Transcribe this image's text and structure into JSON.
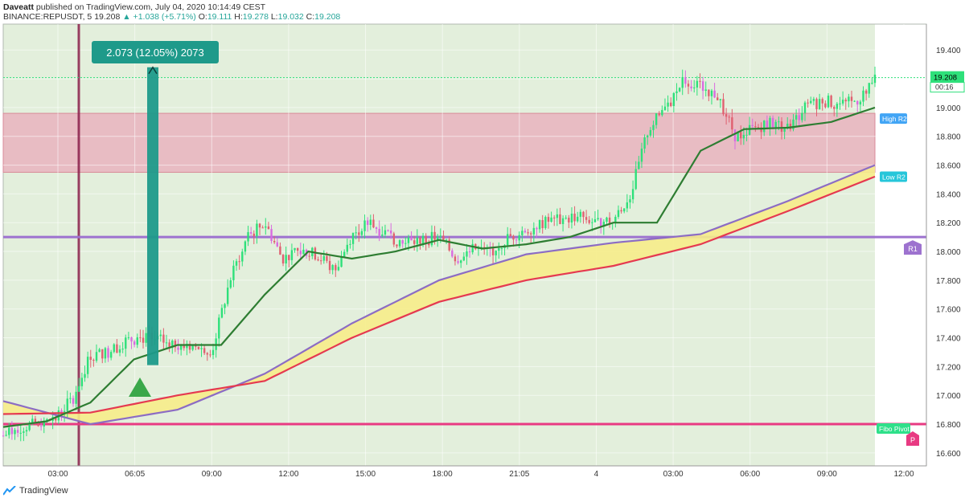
{
  "header": {
    "author": "Daveatt",
    "published": "published on TradingView.com, July 04, 2020 10:14:49 CEST",
    "symbol": "BINANCE:REPUSDT, 5",
    "last": "19.208",
    "change": "▲ +1.038 (+5.71%)",
    "ohlc": {
      "o_label": "O:",
      "o": "19.111",
      "h_label": "H:",
      "h": "19.278",
      "l_label": "L:",
      "l": "19.032",
      "c_label": "C:",
      "c": "19.208"
    }
  },
  "brand": {
    "name": "TradingView",
    "icon": "tradingview-logo-icon"
  },
  "colors": {
    "background_green": "#e3efdc",
    "zone_pink": "#e8bcc3",
    "candle_up": "#2ee07a",
    "candle_down": "#e06070",
    "candle_magenta": "#d96be0",
    "ema_green": "#2e7d32",
    "ma_red": "#e53950",
    "ma_purple": "#8c6cc4",
    "fill_yellow": "#f6ec8a",
    "pivot_pink": "#e83a82",
    "r1_purple": "#9d72cf",
    "measure_teal": "#1e9a8a",
    "price_label_green": "#2ee07a",
    "high_r2_blue": "#42a5f5",
    "low_r2_cyan": "#26c6da",
    "fibo_green": "#2ee08a"
  },
  "chart_data": {
    "type": "line",
    "title": "",
    "y_axis": {
      "ticks": [
        "19.400",
        "19.200",
        "19.000",
        "18.800",
        "18.600",
        "18.400",
        "18.200",
        "18.000",
        "17.800",
        "17.600",
        "17.400",
        "17.200",
        "17.000",
        "16.800",
        "16.600"
      ],
      "ylim": [
        16.51,
        19.58
      ]
    },
    "x_axis": {
      "ticks": [
        "03:00",
        "06:05",
        "09:00",
        "12:00",
        "15:00",
        "18:00",
        "21:05",
        "4",
        "03:00",
        "06:00",
        "09:00",
        "12:00"
      ]
    },
    "price_label": {
      "value": "19.208",
      "countdown": "00:16"
    },
    "measure": {
      "text": "2.073 (12.05%) 2073",
      "from": 17.21,
      "to": 19.28
    },
    "zone": {
      "top": 18.96,
      "bottom": 18.55
    },
    "levels": [
      {
        "name": "High R2",
        "value": 18.96
      },
      {
        "name": "Low R2",
        "value": 18.55
      },
      {
        "name": "R1",
        "value": 18.1
      },
      {
        "name": "Fibo Pivot",
        "value": 16.8
      },
      {
        "name": "P",
        "value": 16.8
      }
    ],
    "series": [
      {
        "key": "price",
        "x": [
          0,
          2,
          4,
          6,
          8,
          10,
          12,
          14,
          16,
          18,
          20,
          22,
          24,
          26,
          28,
          30,
          32,
          34,
          36,
          38,
          40,
          42,
          44,
          46,
          48,
          50,
          52,
          54,
          56,
          58,
          60,
          62,
          64,
          66,
          68,
          70,
          72,
          74,
          76,
          78,
          80,
          82,
          84,
          86,
          88,
          90,
          92,
          94,
          96,
          98,
          100
        ],
        "values": [
          16.72,
          16.78,
          16.8,
          16.84,
          16.98,
          17.28,
          17.3,
          17.38,
          17.4,
          17.38,
          17.36,
          17.34,
          17.32,
          17.8,
          18.1,
          18.2,
          17.95,
          18.0,
          17.98,
          17.86,
          18.12,
          18.2,
          18.12,
          18.05,
          18.08,
          18.1,
          17.95,
          18.02,
          18.0,
          18.1,
          18.15,
          18.2,
          18.22,
          18.25,
          18.2,
          18.22,
          18.4,
          18.85,
          19.0,
          19.18,
          19.15,
          19.08,
          18.8,
          18.85,
          18.9,
          18.85,
          19.0,
          19.05,
          19.02,
          19.05,
          19.21
        ]
      },
      {
        "key": "ema_fast",
        "x": [
          0,
          5,
          10,
          15,
          20,
          25,
          30,
          35,
          40,
          45,
          50,
          55,
          60,
          65,
          70,
          75,
          80,
          85,
          90,
          95,
          100
        ],
        "values": [
          16.78,
          16.82,
          16.95,
          17.25,
          17.35,
          17.35,
          17.7,
          18.0,
          17.95,
          18.0,
          18.08,
          18.02,
          18.05,
          18.1,
          18.2,
          18.2,
          18.7,
          18.85,
          18.86,
          18.9,
          19.0
        ]
      },
      {
        "key": "ma_red",
        "x": [
          0,
          10,
          20,
          30,
          40,
          50,
          60,
          70,
          80,
          90,
          100
        ],
        "values": [
          16.87,
          16.88,
          17.0,
          17.1,
          17.4,
          17.65,
          17.8,
          17.9,
          18.05,
          18.28,
          18.52
        ]
      },
      {
        "key": "ma_purple",
        "x": [
          0,
          10,
          20,
          30,
          40,
          50,
          60,
          70,
          80,
          90,
          100
        ],
        "values": [
          16.96,
          16.8,
          16.9,
          17.15,
          17.5,
          17.8,
          17.98,
          18.06,
          18.12,
          18.35,
          18.6
        ]
      }
    ]
  }
}
